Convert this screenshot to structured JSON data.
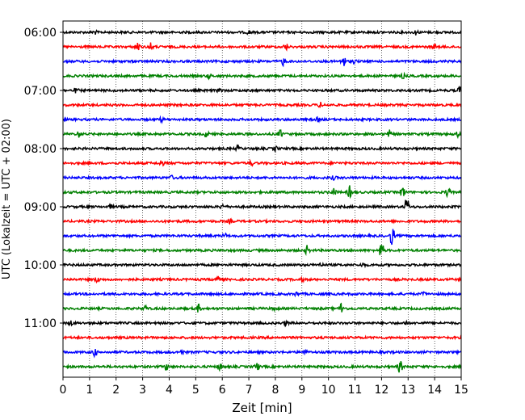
{
  "chart_data": {
    "type": "line",
    "title": "",
    "xlabel": "Zeit  [min]",
    "ylabel": "UTC (Lokalzeit = UTC + 02:00)",
    "xlim": [
      0,
      15
    ],
    "x_ticks": [
      "0",
      "1",
      "2",
      "3",
      "4",
      "5",
      "6",
      "7",
      "8",
      "9",
      "10",
      "11",
      "12",
      "13",
      "14",
      "15"
    ],
    "y_ticks": [
      "06:00",
      "07:00",
      "08:00",
      "09:00",
      "10:00",
      "11:00"
    ],
    "grid": "vertical dotted",
    "trace_interval_min": 15,
    "row_colors": [
      "#000000",
      "#ff0000",
      "#0000ff",
      "#008000"
    ],
    "series": [
      {
        "start": "06:00",
        "color": "#000000",
        "events": [
          [
            1.2,
            0.15
          ],
          [
            7.0,
            0.15
          ],
          [
            13.3,
            0.2
          ]
        ]
      },
      {
        "start": "06:15",
        "color": "#ff0000",
        "events": [
          [
            2.8,
            0.5
          ],
          [
            3.3,
            0.3
          ],
          [
            8.4,
            0.3
          ],
          [
            14.0,
            0.2
          ]
        ]
      },
      {
        "start": "06:30",
        "color": "#0000ff",
        "events": [
          [
            8.3,
            0.35
          ],
          [
            10.55,
            0.7
          ],
          [
            11.0,
            0.2
          ]
        ]
      },
      {
        "start": "06:45",
        "color": "#008000",
        "events": [
          [
            5.5,
            0.2
          ],
          [
            12.8,
            0.2
          ]
        ]
      },
      {
        "start": "07:00",
        "color": "#000000",
        "events": [
          [
            0.5,
            0.2
          ],
          [
            5.9,
            0.2
          ],
          [
            14.95,
            0.3
          ]
        ]
      },
      {
        "start": "07:15",
        "color": "#ff0000",
        "events": [
          [
            9.7,
            0.2
          ]
        ]
      },
      {
        "start": "07:30",
        "color": "#0000ff",
        "events": [
          [
            3.7,
            0.2
          ],
          [
            9.6,
            0.15
          ]
        ]
      },
      {
        "start": "07:45",
        "color": "#008000",
        "events": [
          [
            0.6,
            0.25
          ],
          [
            5.4,
            0.3
          ],
          [
            8.2,
            0.35
          ],
          [
            12.3,
            0.3
          ],
          [
            14.9,
            0.25
          ]
        ]
      },
      {
        "start": "08:00",
        "color": "#000000",
        "events": [
          [
            6.6,
            0.25
          ],
          [
            8.0,
            0.2
          ]
        ]
      },
      {
        "start": "08:15",
        "color": "#ff0000",
        "events": [
          [
            3.7,
            0.3
          ],
          [
            7.1,
            0.2
          ]
        ]
      },
      {
        "start": "08:30",
        "color": "#0000ff",
        "events": [
          [
            4.1,
            0.15
          ],
          [
            10.2,
            0.15
          ]
        ]
      },
      {
        "start": "08:45",
        "color": "#008000",
        "events": [
          [
            10.2,
            0.4
          ],
          [
            10.8,
            0.55
          ],
          [
            12.8,
            0.55
          ],
          [
            14.5,
            0.4
          ]
        ]
      },
      {
        "start": "09:00",
        "color": "#000000",
        "events": [
          [
            1.8,
            0.15
          ],
          [
            6.0,
            0.2
          ],
          [
            12.95,
            0.9
          ]
        ]
      },
      {
        "start": "09:15",
        "color": "#ff0000",
        "events": [
          [
            6.3,
            0.15
          ]
        ]
      },
      {
        "start": "09:30",
        "color": "#0000ff",
        "events": [
          [
            6.1,
            0.2
          ],
          [
            12.4,
            1.0
          ]
        ]
      },
      {
        "start": "09:45",
        "color": "#008000",
        "events": [
          [
            9.2,
            0.4
          ],
          [
            12.0,
            0.8
          ]
        ]
      },
      {
        "start": "10:00",
        "color": "#000000",
        "events": [
          [
            9.7,
            0.15
          ],
          [
            11.3,
            0.15
          ]
        ]
      },
      {
        "start": "10:15",
        "color": "#ff0000",
        "events": [
          [
            1.3,
            0.3
          ],
          [
            5.8,
            0.4
          ],
          [
            9.0,
            0.15
          ]
        ]
      },
      {
        "start": "10:30",
        "color": "#0000ff",
        "events": [
          [
            8.8,
            0.15
          ],
          [
            13.6,
            0.15
          ]
        ]
      },
      {
        "start": "10:45",
        "color": "#008000",
        "events": [
          [
            3.1,
            0.25
          ],
          [
            5.1,
            0.35
          ],
          [
            8.0,
            0.25
          ],
          [
            10.5,
            0.6
          ]
        ]
      },
      {
        "start": "11:00",
        "color": "#000000",
        "events": [
          [
            0.3,
            0.2
          ],
          [
            8.4,
            0.2
          ],
          [
            12.9,
            0.15
          ]
        ]
      },
      {
        "start": "11:15",
        "color": "#ff0000",
        "events": []
      },
      {
        "start": "11:30",
        "color": "#0000ff",
        "events": [
          [
            1.2,
            0.35
          ],
          [
            4.5,
            0.2
          ],
          [
            9.1,
            0.2
          ]
        ]
      },
      {
        "start": "11:45",
        "color": "#008000",
        "events": [
          [
            3.9,
            0.3
          ],
          [
            5.9,
            0.3
          ],
          [
            7.3,
            0.35
          ],
          [
            12.7,
            0.6
          ]
        ]
      }
    ]
  }
}
